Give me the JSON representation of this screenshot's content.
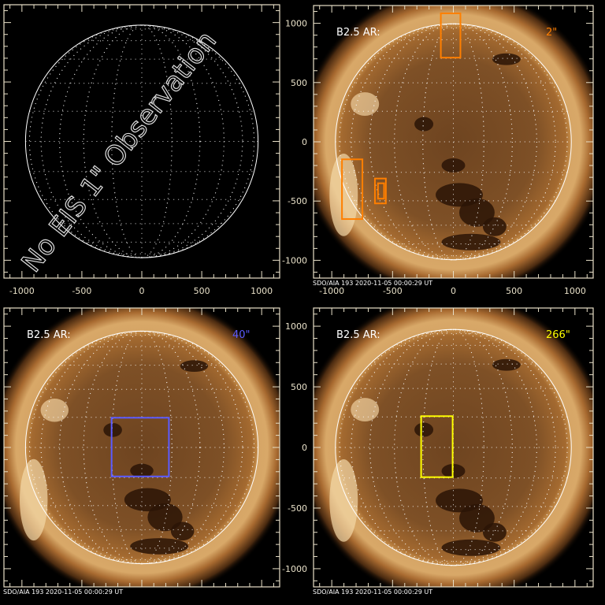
{
  "chart_data": [
    {
      "type": "image",
      "panel": "top-left",
      "sun_image": false,
      "overlay_text": "No EIS 1\" Observation",
      "xlim": [
        -1150,
        1150
      ],
      "ylim": [
        -1150,
        1150
      ],
      "xticks": [
        -1000,
        -500,
        0,
        500,
        1000
      ],
      "xtick_labels": [
        "-1000",
        "-500",
        "0",
        "500",
        "1000"
      ],
      "show_xtick_labels": true,
      "show_ytick_labels": false,
      "label": "",
      "size_label": "",
      "caption": "",
      "boxes": []
    },
    {
      "type": "image",
      "panel": "top-right",
      "sun_image": true,
      "xlim": [
        -1150,
        1150
      ],
      "ylim": [
        -1150,
        1150
      ],
      "xticks": [
        -1000,
        -500,
        0,
        500,
        1000
      ],
      "xtick_labels": [
        "-1000",
        "-500",
        "0",
        "500",
        "1000"
      ],
      "yticks": [
        1000,
        500,
        0,
        -500,
        -1000
      ],
      "ytick_labels": [
        "1000",
        "500",
        "0",
        "-500",
        "-1000"
      ],
      "show_xtick_labels": true,
      "show_ytick_labels": true,
      "label": "B2.5 AR:",
      "size_label": "2\"",
      "size_color": "#ff7f00",
      "caption": "SDO/AIA 193   2020-11-05 00:00:29 UT",
      "boxes": [
        {
          "x": [
            -103,
            58
          ],
          "y": [
            710,
            1084
          ],
          "color": "#ff7f00"
        },
        {
          "x": [
            -916,
            -748
          ],
          "y": [
            -652,
            -148
          ],
          "color": "#ff7f00"
        },
        {
          "x": [
            -645,
            -555
          ],
          "y": [
            -520,
            -310
          ],
          "color": "#ff7f00"
        },
        {
          "x": [
            -620,
            -570
          ],
          "y": [
            -480,
            -350
          ],
          "color": "#ff7f00"
        }
      ]
    },
    {
      "type": "image",
      "panel": "bottom-left",
      "sun_image": true,
      "xlim": [
        -1150,
        1150
      ],
      "ylim": [
        -1150,
        1150
      ],
      "show_xtick_labels": false,
      "show_ytick_labels": false,
      "label": "B2.5 AR:",
      "size_label": "40\"",
      "size_color": "#5b5bff",
      "caption": "SDO/AIA 193   2020-11-05 00:00:29 UT",
      "boxes": [
        {
          "x": [
            -252,
            226
          ],
          "y": [
            -239,
            245
          ],
          "color": "#5b5bff"
        }
      ]
    },
    {
      "type": "image",
      "panel": "bottom-right",
      "sun_image": true,
      "xlim": [
        -1150,
        1150
      ],
      "ylim": [
        -1150,
        1150
      ],
      "yticks": [
        1000,
        500,
        0,
        -500,
        -1000
      ],
      "ytick_labels": [
        "1000",
        "500",
        "0",
        "-500",
        "-1000"
      ],
      "show_xtick_labels": false,
      "show_ytick_labels": true,
      "label": "B2.5 AR:",
      "size_label": "266\"",
      "size_color": "#ffff00",
      "caption": "SDO/AIA 193   2020-11-05 00:00:29 UT",
      "boxes": [
        {
          "x": [
            -265,
            -6
          ],
          "y": [
            -245,
            258
          ],
          "color": "#ffff00"
        }
      ]
    }
  ],
  "solar_radius_arcsec": 970,
  "colors": {
    "axis": "#e8e0c8",
    "sun_core": "#8a5a2a",
    "corona": "#f0c890"
  }
}
